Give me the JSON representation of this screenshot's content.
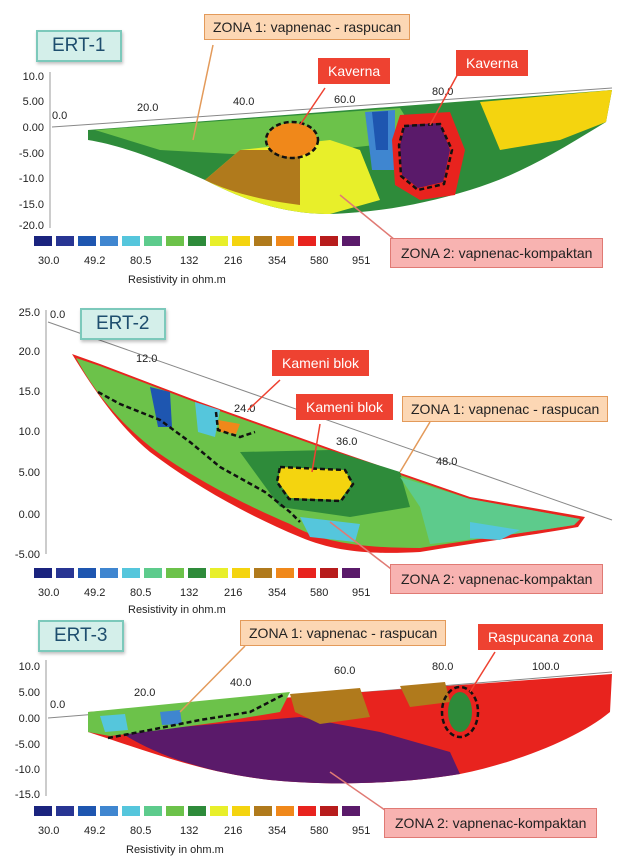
{
  "palette": [
    "#1a237e",
    "#283593",
    "#1e56b0",
    "#3f86d0",
    "#55c6dc",
    "#5dcb8c",
    "#6cc24a",
    "#2e8b3a",
    "#e8ef2a",
    "#f4d40f",
    "#b07a1c",
    "#f0881a",
    "#e8231e",
    "#b71c1c",
    "#5a1a6a"
  ],
  "legend": {
    "ticks": [
      "30.0",
      "49.2",
      "80.5",
      "132",
      "216",
      "354",
      "580",
      "951"
    ],
    "unit_label": "Resistivity in ohm.m"
  },
  "ert1": {
    "title": "ERT-1",
    "zona1": "ZONA 1: vapnenac - raspucan",
    "zona2": "ZONA 2: vapnenac-kompaktan",
    "kaverna_left": "Kaverna",
    "kaverna_right": "Kaverna",
    "y_ticks": [
      "10.0",
      "5.00",
      "0.00",
      "-5.00",
      "-10.0",
      "-15.0",
      "-20.0"
    ],
    "x_ticks": [
      "0.0",
      "20.0",
      "40.0",
      "60.0",
      "80.0"
    ]
  },
  "ert2": {
    "title": "ERT-2",
    "zona1": "ZONA 1: vapnenac - raspucan",
    "zona2": "ZONA 2: vapnenac-kompaktan",
    "kameni_blok_1": "Kameni blok",
    "kameni_blok_2": "Kameni blok",
    "y_ticks": [
      "25.0",
      "20.0",
      "15.0",
      "10.0",
      "5.00",
      "0.00",
      "-5.00"
    ],
    "x_ticks": [
      "0.0",
      "12.0",
      "24.0",
      "36.0",
      "48.0"
    ]
  },
  "ert3": {
    "title": "ERT-3",
    "zona1": "ZONA 1: vapnenac - raspucan",
    "zona2": "ZONA 2: vapnenac-kompaktan",
    "raspucana_zona": "Raspucana zona",
    "y_ticks": [
      "10.0",
      "5.00",
      "0.00",
      "-5.00",
      "-10.0",
      "-15.0"
    ],
    "x_ticks": [
      "0.0",
      "20.0",
      "40.0",
      "60.0",
      "80.0",
      "100.0"
    ]
  }
}
